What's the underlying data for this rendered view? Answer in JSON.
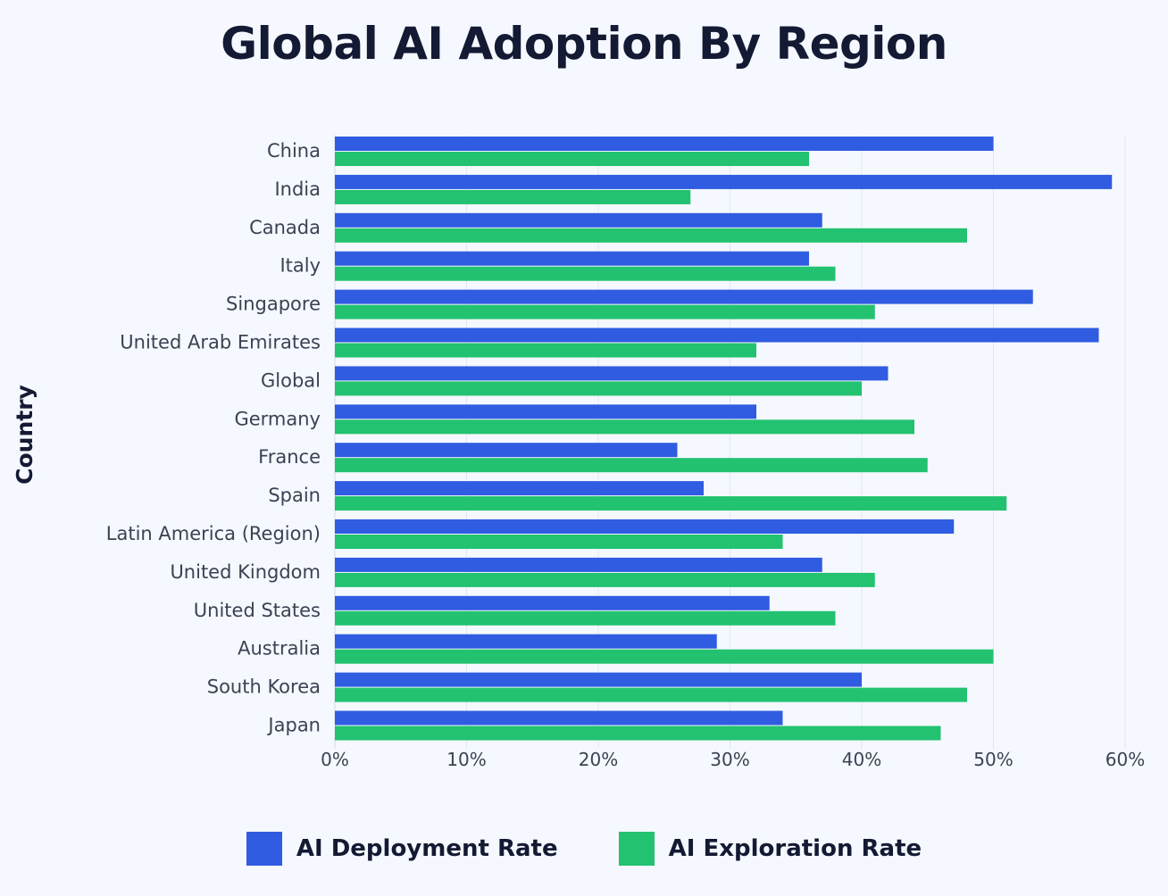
{
  "chart_data": {
    "type": "bar",
    "orientation": "horizontal",
    "title": "Global AI Adoption By Region",
    "ylabel": "Country",
    "xlabel": "",
    "categories": [
      "China",
      "India",
      "Canada",
      "Italy",
      "Singapore",
      "United Arab Emirates",
      "Global",
      "Germany",
      "France",
      "Spain",
      "Latin America (Region)",
      "United Kingdom",
      "United States",
      "Australia",
      "South Korea",
      "Japan"
    ],
    "series": [
      {
        "name": "AI Deployment Rate",
        "color": "#2f5ce0",
        "values": [
          50,
          59,
          37,
          36,
          53,
          58,
          42,
          32,
          26,
          28,
          47,
          37,
          33,
          29,
          40,
          34
        ]
      },
      {
        "name": "AI Exploration Rate",
        "color": "#22c270",
        "values": [
          36,
          27,
          48,
          38,
          41,
          32,
          40,
          44,
          45,
          51,
          34,
          41,
          38,
          50,
          48,
          46
        ]
      }
    ],
    "xlim": [
      0,
      60
    ],
    "xticks": [
      "0%",
      "10%",
      "20%",
      "30%",
      "40%",
      "50%",
      "60%"
    ],
    "grid": true,
    "legend_position": "bottom"
  }
}
